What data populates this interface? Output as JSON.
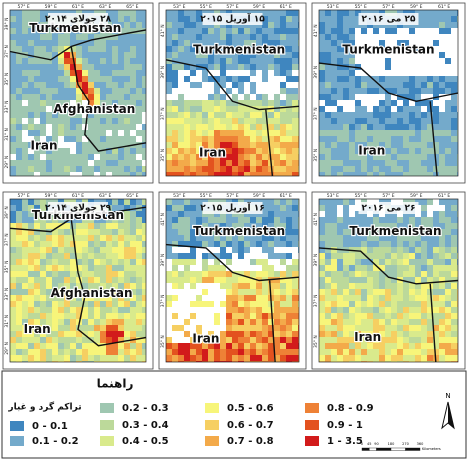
{
  "panels": [
    {
      "date": "۲۸ جولای ۲۰۱۴",
      "labels": [
        "Turkmenistan",
        "Afghanistan",
        "Iran"
      ],
      "xticks": [
        "57° E",
        "59° E",
        "61° E",
        "63° E",
        "65° E"
      ],
      "yticks": [
        "39° N",
        "37° N",
        "35° N",
        "33° N",
        "31° N",
        "29° N"
      ]
    },
    {
      "date": "۱۵ آوریل ۲۰۱۵",
      "labels": [
        "Turkmenistan",
        "Iran"
      ],
      "xticks": [
        "53° E",
        "55° E",
        "57° E",
        "59° E",
        "61° E"
      ],
      "yticks": [
        "41° N",
        "39° N",
        "37° N",
        "35° N"
      ]
    },
    {
      "date": "۲۵ می ۲۰۱۶",
      "labels": [
        "Turkmenistan",
        "Iran"
      ],
      "xticks": [
        "53° E",
        "55° E",
        "57° E",
        "59° E",
        "61° E"
      ],
      "yticks": [
        "41° N",
        "39° N",
        "37° N",
        "35° N"
      ]
    },
    {
      "date": "۲۹ جولای ۲۰۱۴",
      "labels": [
        "Turkmenistan",
        "Afghanistan",
        "Iran"
      ],
      "xticks": [
        "57° E",
        "59° E",
        "61° E",
        "63° E",
        "65° E"
      ],
      "yticks": [
        "39° N",
        "37° N",
        "35° N",
        "33° N",
        "31° N",
        "29° N"
      ]
    },
    {
      "date": "۱۶ آوریل ۲۰۱۵",
      "labels": [
        "Turkmenistan",
        "Iran"
      ],
      "xticks": [
        "53° E",
        "55° E",
        "57° E",
        "59° E",
        "61° E"
      ],
      "yticks": [
        "41° N",
        "39° N",
        "37° N",
        "35° N"
      ]
    },
    {
      "date": "۲۶ می ۲۰۱۶",
      "labels": [
        "Turkmenistan",
        "Iran"
      ],
      "xticks": [
        "53° E",
        "55° E",
        "57° E",
        "59° E",
        "61° E"
      ],
      "yticks": [
        "41° N",
        "39° N",
        "37° N",
        "35° N"
      ]
    }
  ],
  "legend": {
    "title": "راهنما",
    "subtitle": "تراکم گرد و غبار",
    "classes": [
      {
        "label": "0 - 0.1",
        "color": "#3f86bf"
      },
      {
        "label": "0.1 - 0.2",
        "color": "#74aacb"
      },
      {
        "label": "0.2 - 0.3",
        "color": "#9fc7b1"
      },
      {
        "label": "0.3 - 0.4",
        "color": "#bcd99a"
      },
      {
        "label": "0.4 - 0.5",
        "color": "#d9ea8c"
      },
      {
        "label": "0.5 - 0.6",
        "color": "#f7f57a"
      },
      {
        "label": "0.6 - 0.7",
        "color": "#f6cf62"
      },
      {
        "label": "0.7 - 0.8",
        "color": "#f3aa4a"
      },
      {
        "label": "0.8 - 0.9",
        "color": "#ee8136"
      },
      {
        "label": "0.9 - 1",
        "color": "#e3521f"
      },
      {
        "label": "1 - 3.5",
        "color": "#d21b1b"
      }
    ]
  },
  "scale_bar": {
    "labels": [
      "0",
      "45",
      "90",
      "180",
      "270",
      "360"
    ],
    "unit": "Kilometers"
  },
  "north": "N"
}
